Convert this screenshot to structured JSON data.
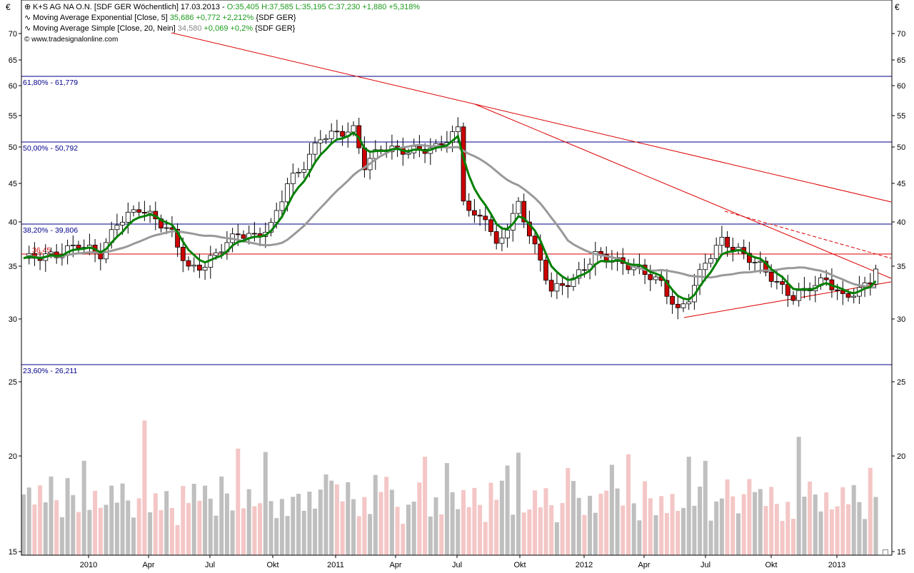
{
  "header": {
    "main_symbol": "⊕",
    "main_title": "K+S AG NA O.N. [SDF GER  Wöchentlich] 17.03.2013 - ",
    "main_values": "O:35,405 H:37,585 L:35,195 C:37,230 +1,880 +5,318%",
    "ema_symbol": "∿",
    "ema_title": "Moving Average Exponential [Close, 5] ",
    "ema_values": "35,686 +0,772 +2,212%",
    "ema_suffix": " {SDF GER}",
    "sma_symbol": "∿",
    "sma_title": "Moving Average Simple [Close, 20, Nein] ",
    "sma_value": "34,580",
    "sma_change": " +0,069 +0,2%",
    "sma_suffix": " {SDF GER}",
    "copyright": "© www.tradesignalonline.com"
  },
  "corner_labels": {
    "left": "€",
    "right": "€"
  },
  "fib_labels": [
    {
      "text": "61,80% - 61,779",
      "price": 61.779
    },
    {
      "text": "50,00% - 50,792",
      "price": 50.792
    },
    {
      "text": "38,20% - 39,806",
      "price": 39.806
    },
    {
      "text": "23,60% - 26,211",
      "price": 26.211
    }
  ],
  "support_label": {
    "text": "36,45",
    "price": 36.45
  },
  "colors": {
    "up_candle": "#ffffff",
    "down_candle": "#cc0000",
    "ema": "#008000",
    "sma": "#999999",
    "trendline": "#dd0000",
    "fib": "#00008b",
    "vol_gray": "#bfbfbf",
    "vol_pink": "#f4c6c6"
  },
  "chart_data": {
    "type": "candlestick",
    "title": "K+S AG NA O.N. [SDF GER  Wöchentlich]",
    "currency": "€",
    "y_axis_ticks": [
      "70",
      "65",
      "60",
      "55",
      "50",
      "45",
      "40",
      "35",
      "30",
      "25",
      "20",
      "15"
    ],
    "x_axis_ticks": [
      "2010",
      "Apr",
      "Jul",
      "Okt",
      "2011",
      "Apr",
      "Jul",
      "Okt",
      "2012",
      "Apr",
      "Jul",
      "Okt",
      "2013"
    ],
    "price_range": [
      28,
      72
    ],
    "last_bar": {
      "date": "17.03.2013",
      "open": 35.405,
      "high": 37.585,
      "low": 35.195,
      "close": 37.23
    },
    "close_keypoints": [
      {
        "week": 0,
        "close": 38.5
      },
      {
        "week": 6,
        "close": 39.0
      },
      {
        "week": 10,
        "close": 40.5
      },
      {
        "week": 14,
        "close": 39.0
      },
      {
        "week": 17,
        "close": 43.5
      },
      {
        "week": 21,
        "close": 45.5
      },
      {
        "week": 24,
        "close": 44.0
      },
      {
        "week": 27,
        "close": 42.0
      },
      {
        "week": 30,
        "close": 37.0
      },
      {
        "week": 33,
        "close": 37.5
      },
      {
        "week": 36,
        "close": 40.0
      },
      {
        "week": 39,
        "close": 42.0
      },
      {
        "week": 42,
        "close": 41.5
      },
      {
        "week": 45,
        "close": 43.0
      },
      {
        "week": 48,
        "close": 49.0
      },
      {
        "week": 51,
        "close": 51.5
      },
      {
        "week": 54,
        "close": 55.5
      },
      {
        "week": 57,
        "close": 56.0
      },
      {
        "week": 60,
        "close": 56.5
      },
      {
        "week": 62,
        "close": 51.5
      },
      {
        "week": 65,
        "close": 54.0
      },
      {
        "week": 70,
        "close": 53.5
      },
      {
        "week": 75,
        "close": 54.0
      },
      {
        "week": 79,
        "close": 56.5
      },
      {
        "week": 80,
        "close": 47.0
      },
      {
        "week": 82,
        "close": 44.0
      },
      {
        "week": 84,
        "close": 44.5
      },
      {
        "week": 86,
        "close": 40.0
      },
      {
        "week": 88,
        "close": 43.0
      },
      {
        "week": 90,
        "close": 46.0
      },
      {
        "week": 92,
        "close": 42.0
      },
      {
        "week": 94,
        "close": 38.0
      },
      {
        "week": 96,
        "close": 34.0
      },
      {
        "week": 100,
        "close": 35.5
      },
      {
        "week": 104,
        "close": 39.0
      },
      {
        "week": 108,
        "close": 38.0
      },
      {
        "week": 112,
        "close": 37.0
      },
      {
        "week": 116,
        "close": 35.0
      },
      {
        "week": 119,
        "close": 31.0
      },
      {
        "week": 121,
        "close": 33.0
      },
      {
        "week": 124,
        "close": 38.0
      },
      {
        "week": 127,
        "close": 41.0
      },
      {
        "week": 130,
        "close": 39.5
      },
      {
        "week": 134,
        "close": 37.5
      },
      {
        "week": 137,
        "close": 35.0
      },
      {
        "week": 140,
        "close": 33.0
      },
      {
        "week": 143,
        "close": 34.5
      },
      {
        "week": 146,
        "close": 35.5
      },
      {
        "week": 149,
        "close": 33.0
      },
      {
        "week": 152,
        "close": 34.0
      },
      {
        "week": 154,
        "close": 35.4
      },
      {
        "week": 155,
        "close": 37.23
      }
    ],
    "volume_axis_ticks": [
      "25",
      "20",
      "15"
    ]
  }
}
